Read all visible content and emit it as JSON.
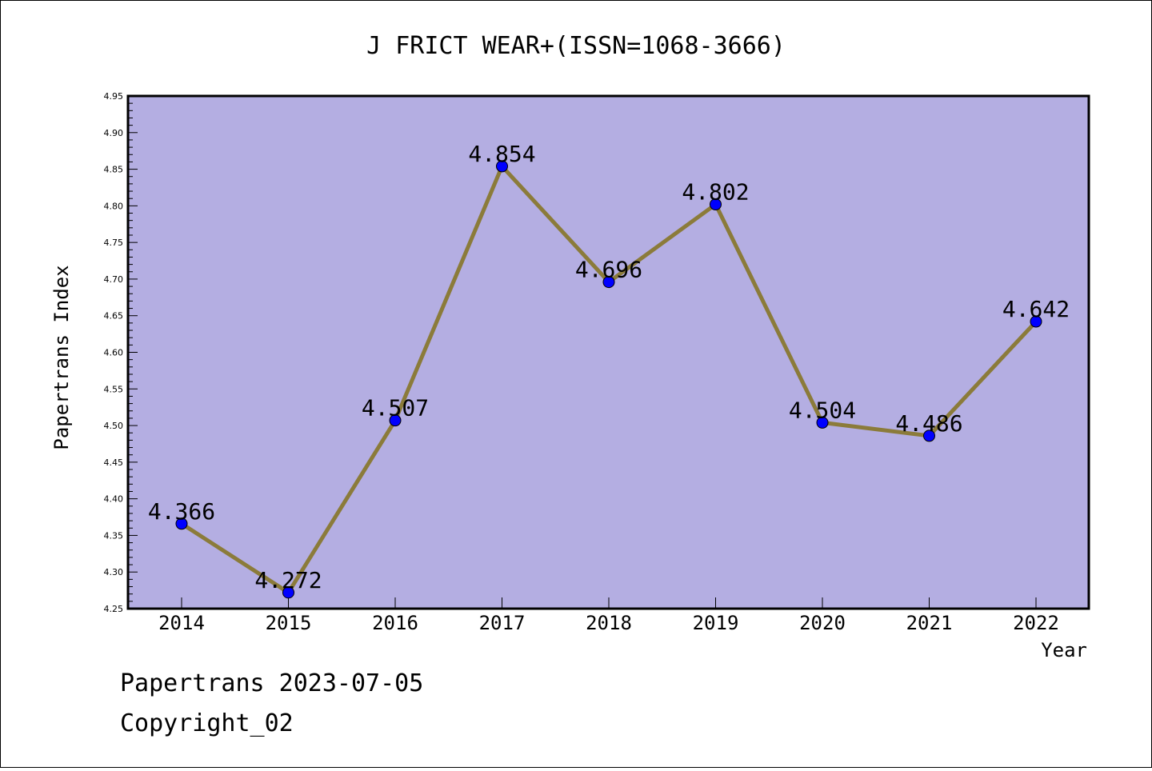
{
  "chart_data": {
    "type": "line",
    "title": "J FRICT WEAR+(ISSN=1068-3666)",
    "xlabel": "Year",
    "ylabel": "Papertrans Index",
    "categories": [
      "2014",
      "2015",
      "2016",
      "2017",
      "2018",
      "2019",
      "2020",
      "2021",
      "2022"
    ],
    "values": [
      4.366,
      4.272,
      4.507,
      4.854,
      4.696,
      4.802,
      4.504,
      4.486,
      4.642
    ],
    "data_labels": [
      "4.366",
      "4.272",
      "4.507",
      "4.854",
      "4.696",
      "4.802",
      "4.504",
      "4.486",
      "4.642"
    ],
    "ylim": [
      4.25,
      4.95
    ],
    "yticks": [
      "4.25",
      "4.30",
      "4.35",
      "4.40",
      "4.45",
      "4.50",
      "4.55",
      "4.60",
      "4.65",
      "4.70",
      "4.75",
      "4.80",
      "4.85",
      "4.90",
      "4.95"
    ],
    "grid": false,
    "legend": "none"
  },
  "colors": {
    "plot_background": "#b4aee2",
    "line": "#8b7b3a",
    "marker": "#0000ff"
  },
  "footer": {
    "date_text": "Papertrans 2023-07-05",
    "copyright_text": "Copyright_02"
  }
}
